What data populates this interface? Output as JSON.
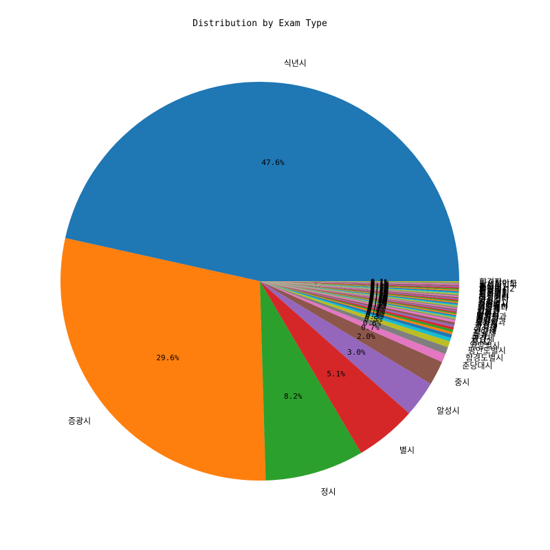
{
  "chart_data": {
    "type": "pie",
    "title": "Distribution by Exam Type",
    "start_angle_deg": 0,
    "direction": "counterclockwise",
    "slices": [
      {
        "label": "식년시",
        "value": 47.6,
        "pct_label": "47.6%",
        "color": "#1f77b4"
      },
      {
        "label": "증광시",
        "value": 29.6,
        "pct_label": "29.6%",
        "color": "#ff7f0e"
      },
      {
        "label": "정시",
        "value": 8.2,
        "pct_label": "8.2%",
        "color": "#2ca02c"
      },
      {
        "label": "별시",
        "value": 5.1,
        "pct_label": "5.1%",
        "color": "#d62728"
      },
      {
        "label": "알성시",
        "value": 3.0,
        "pct_label": "3.0%",
        "color": "#9467bd"
      },
      {
        "label": "중시",
        "value": 2.0,
        "pct_label": "2.0%",
        "color": "#8c564b"
      },
      {
        "label": "춘당대시",
        "value": 0.7,
        "pct_label": "0.7%",
        "color": "#e377c2"
      },
      {
        "label": "함경도별시",
        "value": 0.6,
        "pct_label": "0.6%",
        "color": "#7f7f7f"
      },
      {
        "label": "평안도별시",
        "value": 0.5,
        "pct_label": "0.5%",
        "color": "#bcbd22"
      },
      {
        "label": "외방별시",
        "value": 0.3,
        "pct_label": "0.3%",
        "color": "#17becf"
      },
      {
        "label": "정시2",
        "value": 0.3,
        "pct_label": "0.3%",
        "color": "#1f77b4"
      },
      {
        "label": "황감제",
        "value": 0.2,
        "pct_label": "0.2%",
        "color": "#ff7f0e"
      },
      {
        "label": "도과",
        "value": 0.2,
        "pct_label": "0.2%",
        "color": "#2ca02c"
      },
      {
        "label": "절일제",
        "value": 0.2,
        "pct_label": "0.2%",
        "color": "#d62728"
      },
      {
        "label": "인일제",
        "value": 0.2,
        "pct_label": "0.2%",
        "color": "#9467bd"
      },
      {
        "label": "칠석제",
        "value": 0.2,
        "pct_label": "0.2%",
        "color": "#8c564b"
      },
      {
        "label": "구일제",
        "value": 0.2,
        "pct_label": "0.2%",
        "color": "#e377c2"
      },
      {
        "label": "상사제",
        "value": 0.1,
        "pct_label": "0.1%",
        "color": "#7f7f7f"
      },
      {
        "label": "통방외과",
        "value": 0.1,
        "pct_label": "0.1%",
        "color": "#bcbd22"
      },
      {
        "label": "전강",
        "value": 0.1,
        "pct_label": "0.1%",
        "color": "#17becf"
      },
      {
        "label": "친림과",
        "value": 0.1,
        "pct_label": "0.1%",
        "color": "#1f77b4"
      },
      {
        "label": "중광시",
        "value": 0.1,
        "pct_label": "0.1%",
        "color": "#ff7f0e"
      },
      {
        "label": "별시문과",
        "value": 0.1,
        "pct_label": "0.1%",
        "color": "#2ca02c"
      },
      {
        "label": "탁영시",
        "value": 0.1,
        "pct_label": "0.1%",
        "color": "#d62728"
      },
      {
        "label": "등준시",
        "value": 0.1,
        "pct_label": "0.1%",
        "color": "#9467bd"
      },
      {
        "label": "진현시",
        "value": 0.1,
        "pct_label": "0.1%",
        "color": "#8c564b"
      },
      {
        "label": "기로과",
        "value": 0.1,
        "pct_label": "0.1%",
        "color": "#e377c2"
      },
      {
        "label": "현량과",
        "value": 0.1,
        "pct_label": "0.1%",
        "color": "#7f7f7f"
      },
      {
        "label": "관무재",
        "value": 0.1,
        "pct_label": "0.1%",
        "color": "#bcbd22"
      },
      {
        "label": "외방별과",
        "value": 0.1,
        "pct_label": "0.1%",
        "color": "#17becf"
      },
      {
        "label": "제주별시",
        "value": 0.1,
        "pct_label": "0.1%",
        "color": "#1f77b4"
      },
      {
        "label": "강화별시",
        "value": 0.1,
        "pct_label": "0.1%",
        "color": "#ff7f0e"
      },
      {
        "label": "수원별시",
        "value": 0.1,
        "pct_label": "0.1%",
        "color": "#2ca02c"
      },
      {
        "label": "경과",
        "value": 0.1,
        "pct_label": "0.1%",
        "color": "#d62728"
      },
      {
        "label": "반시",
        "value": 0.1,
        "pct_label": "0.1%",
        "color": "#9467bd"
      },
      {
        "label": "알성별시",
        "value": 0.1,
        "pct_label": "0.1%",
        "color": "#8c564b"
      },
      {
        "label": "정시기타",
        "value": 0.1,
        "pct_label": "0.1%",
        "color": "#e377c2"
      },
      {
        "label": "개성별시",
        "value": 0.1,
        "pct_label": "0.1%",
        "color": "#7f7f7f"
      },
      {
        "label": "의주별시",
        "value": 0.1,
        "pct_label": "0.1%",
        "color": "#bcbd22"
      },
      {
        "label": "서북별시",
        "value": 0.1,
        "pct_label": "0.1%",
        "color": "#17becf"
      },
      {
        "label": "영흥별시",
        "value": 0.1,
        "pct_label": "0.1%",
        "color": "#1f77b4"
      },
      {
        "label": "관서별시",
        "value": 0.1,
        "pct_label": "0.1%",
        "color": "#ff7f0e"
      },
      {
        "label": "함흥별시",
        "value": 0.1,
        "pct_label": "0.1%",
        "color": "#2ca02c"
      },
      {
        "label": "외방별시2",
        "value": 0.1,
        "pct_label": "0.1%",
        "color": "#d62728"
      },
      {
        "label": "중시대거",
        "value": 0.1,
        "pct_label": "0.1%",
        "color": "#9467bd"
      },
      {
        "label": "춘도기",
        "value": 0.1,
        "pct_label": "0.1%",
        "color": "#8c564b"
      },
      {
        "label": "왕세자입학",
        "value": 0.1,
        "pct_label": "0.1%",
        "color": "#e377c2"
      },
      {
        "label": "관서평안도",
        "value": 0.1,
        "pct_label": "0.1%",
        "color": "#7f7f7f"
      },
      {
        "label": "합격자",
        "value": 0.1,
        "pct_label": "0.1%",
        "color": "#bcbd22"
      }
    ]
  }
}
